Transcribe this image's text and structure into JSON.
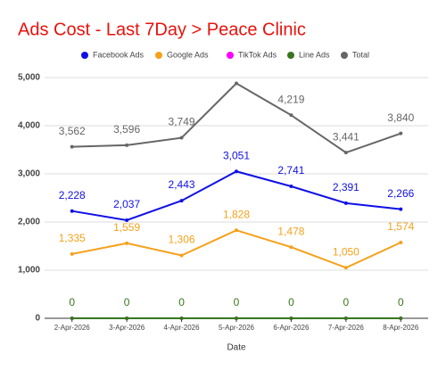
{
  "chart_data": {
    "type": "line",
    "title": "Ads Cost - Last 7Day > Peace Clinic",
    "x_label": "Date",
    "categories": [
      "2-Apr-2026",
      "3-Apr-2026",
      "4-Apr-2026",
      "5-Apr-2026",
      "6-Apr-2026",
      "7-Apr-2026",
      "8-Apr-2026"
    ],
    "series": [
      {
        "name": "Facebook Ads",
        "color": "#1010e6",
        "values": [
          2228,
          2037,
          2443,
          3051,
          2741,
          2391,
          2266
        ],
        "value_labels": [
          "2,228",
          "2,037",
          "2,443",
          "3,051",
          "2,741",
          "2,391",
          "2,266"
        ]
      },
      {
        "name": "Google Ads",
        "color": "#f5a11a",
        "values": [
          1335,
          1559,
          1306,
          1828,
          1478,
          1050,
          1574
        ],
        "value_labels": [
          "1,335",
          "1,559",
          "1,306",
          "1,828",
          "1,478",
          "1,050",
          "1,574"
        ]
      },
      {
        "name": "TikTok Ads",
        "color": "#ff00ff",
        "values": [
          0,
          0,
          0,
          0,
          0,
          0,
          0
        ]
      },
      {
        "name": "Line Ads",
        "color": "#38761d",
        "values": [
          0,
          0,
          0,
          0,
          0,
          0,
          0
        ],
        "value_labels": [
          "0",
          "0",
          "0",
          "0",
          "0",
          "0",
          "0"
        ]
      },
      {
        "name": "Total",
        "color": "#666666",
        "values": [
          3562,
          3596,
          3749,
          4879,
          4219,
          3441,
          3840
        ],
        "value_labels": [
          "3,562",
          "3,596",
          "3,749",
          null,
          "4,219",
          "3,441",
          "3,840"
        ]
      }
    ],
    "ylim": [
      0,
      5000
    ],
    "yticks": [
      0,
      {
        "value": 1000,
        "label": "1,000"
      },
      {
        "value": 2000,
        "label": "2,000"
      },
      {
        "value": 3000,
        "label": "3,000"
      },
      {
        "value": 4000,
        "label": "4,000"
      },
      {
        "value": 5000,
        "label": "5,000"
      }
    ],
    "grid": true,
    "legend": "top"
  }
}
